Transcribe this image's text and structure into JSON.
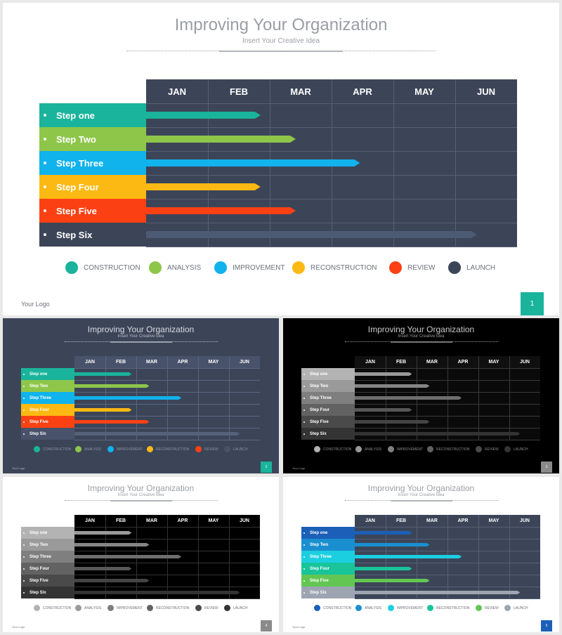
{
  "title": "Improving Your Organization",
  "subtitle": "Insert Your Creative Idea",
  "logo": "Your Logo",
  "months": [
    "JAN",
    "FEB",
    "MAR",
    "APR",
    "MAY",
    "JUN"
  ],
  "steps": [
    {
      "label": "Step one",
      "end": 1.85
    },
    {
      "label": "Step Two",
      "end": 2.42
    },
    {
      "label": "Step Three",
      "end": 3.46
    },
    {
      "label": "Step Four",
      "end": 1.85
    },
    {
      "label": "Step Five",
      "end": 2.42
    },
    {
      "label": "Step Six",
      "end": 5.35
    }
  ],
  "legend": [
    "CONSTRUCTION",
    "ANALYSIS",
    "IMPROVEMENT",
    "RECONSTRUCTION",
    "REVIEW",
    "LAUNCH"
  ],
  "slides": [
    {
      "page": "1",
      "bg": "#ffffff",
      "titleColor": "#9a9ea4",
      "subColor": "#9a9ea4",
      "legendText": "#6b7079",
      "logoColor": "#6b7079",
      "grid": "#3c4558",
      "gridLine": "#556076",
      "head": "#3c4558",
      "steps": [
        "#19b49b",
        "#8ec64a",
        "#10b3ec",
        "#fcb913",
        "#fb4113",
        "#3c4558"
      ],
      "stepText": [
        "#ffffff",
        "#ffffff",
        "#ffffff",
        "#ffffff",
        "#ffffff",
        "#ffffff"
      ],
      "bars": [
        "#19b49b",
        "#8ec64a",
        "#10b3ec",
        "#fcb913",
        "#fb4113",
        "#4c5a74"
      ],
      "badge": "#19b49b"
    },
    {
      "page": "2",
      "bg": "#3c4558",
      "titleColor": "#d7dae0",
      "subColor": "#b7bcc5",
      "legendText": "#8b93a3",
      "logoColor": "#b7bcc5",
      "grid": "#3c4558",
      "gridLine": "#5a6580",
      "head": "#48526a",
      "steps": [
        "#19b49b",
        "#8ec64a",
        "#10b3ec",
        "#fcb913",
        "#fb4113",
        "#48526a"
      ],
      "stepText": [
        "#ffffff",
        "#ffffff",
        "#ffffff",
        "#ffffff",
        "#ffffff",
        "#ffffff"
      ],
      "bars": [
        "#19b49b",
        "#8ec64a",
        "#10b3ec",
        "#fcb913",
        "#fb4113",
        "#556079"
      ],
      "badge": "#19b49b"
    },
    {
      "page": "3",
      "bg": "#000000",
      "titleColor": "#c9c9c9",
      "subColor": "#9a9a9a",
      "legendText": "#8a8a8a",
      "logoColor": "#9a9a9a",
      "grid": "#0a0a0a",
      "gridLine": "#3a3a3a",
      "head": "#101010",
      "steps": [
        "#b3b3b3",
        "#9a9a9a",
        "#7f7f7f",
        "#626262",
        "#4a4a4a",
        "#343434"
      ],
      "stepText": [
        "#ffffff",
        "#ffffff",
        "#ffffff",
        "#ffffff",
        "#ffffff",
        "#ffffff"
      ],
      "bars": [
        "#9a9a9a",
        "#858585",
        "#6e6e6e",
        "#575757",
        "#444444",
        "#333333"
      ],
      "badge": "#8a8a8a"
    },
    {
      "page": "4",
      "bg": "#ffffff",
      "titleColor": "#9a9ea4",
      "subColor": "#9a9ea4",
      "legendText": "#6b7079",
      "logoColor": "#6b7079",
      "grid": "#000000",
      "gridLine": "#333333",
      "head": "#000000",
      "steps": [
        "#b3b3b3",
        "#9a9a9a",
        "#7f7f7f",
        "#626262",
        "#4a4a4a",
        "#343434"
      ],
      "stepText": [
        "#ffffff",
        "#ffffff",
        "#ffffff",
        "#ffffff",
        "#ffffff",
        "#ffffff"
      ],
      "bars": [
        "#9a9a9a",
        "#858585",
        "#6e6e6e",
        "#575757",
        "#444444",
        "#333333"
      ],
      "badge": "#8a8a8a"
    },
    {
      "page": "5",
      "bg": "#ffffff",
      "titleColor": "#9a9ea4",
      "subColor": "#9a9ea4",
      "legendText": "#6b7079",
      "logoColor": "#6b7079",
      "grid": "#3c4558",
      "gridLine": "#556076",
      "head": "#3c4558",
      "steps": [
        "#1b5fb8",
        "#1a8fd0",
        "#1ccfe0",
        "#19c49b",
        "#63c653",
        "#9da5b2"
      ],
      "stepText": [
        "#ffffff",
        "#ffffff",
        "#ffffff",
        "#ffffff",
        "#ffffff",
        "#ffffff"
      ],
      "bars": [
        "#1b5fb8",
        "#1a8fd0",
        "#1ccfe0",
        "#19c49b",
        "#63c653",
        "#9da5b2"
      ],
      "badge": "#1b5fb8"
    }
  ]
}
